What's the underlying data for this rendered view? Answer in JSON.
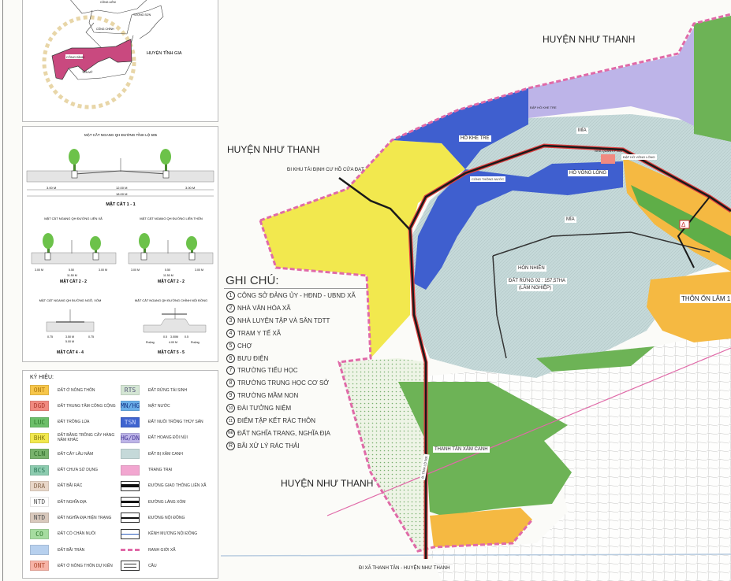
{
  "locator": {
    "communes": [
      "CÔNG LIÊM",
      "TƯỢNG SƠN",
      "CÔNG CHÍNH",
      "CÔNG BÌNH",
      "YÊN MỸ"
    ],
    "district": "HUYỆN TĨNH GIA",
    "highlight_color": "#c9497f"
  },
  "sections": {
    "s1": {
      "title": "MẶT CẮT NGANG QH ĐƯỜNG TỈNH LỘ 505",
      "dims": [
        "3.00 M",
        "12.00 M",
        "3.00 M"
      ],
      "total": "18.00 M",
      "slope": "2.0%",
      "name": "MẶT CẮT 1 - 1"
    },
    "s2a": {
      "title": "MẶT CẮT NGANG QH ĐƯỜNG LIÊN XÃ",
      "dims": [
        "3.00 M",
        "5.50",
        "3.00 M"
      ],
      "total": "11.50 M",
      "name": "MẶT CẮT 2 - 2"
    },
    "s2b": {
      "title": "MẶT CẮT NGANG QH ĐƯỜNG LIÊN THÔN",
      "dims": [
        "3.00 M",
        "5.50",
        "3.00 M"
      ],
      "total": "11.50 M",
      "name": "MẶT CẮT 2 - 2"
    },
    "s4": {
      "title": "MẶT CẮT NGANG QH ĐƯỜNG NGÕ, XÓM",
      "dims": [
        "0.75",
        "3.50 M",
        "0.75"
      ],
      "total": "5.00 M",
      "name": "MẶT CẮT 4 - 4"
    },
    "s5": {
      "title": "MẶT CẮT NGANG QH ĐƯỜNG CHÍNH NỘI ĐỒNG",
      "dims": [
        "0.5",
        "3.00M",
        "0.5"
      ],
      "total": "4.00 M",
      "side": "Ruộng",
      "name": "MẶT CẮT 5 - 5"
    }
  },
  "legend": {
    "title": "KÝ HIỆU:",
    "left": [
      {
        "code": "ONT",
        "label": "ĐẤT Ở NÔNG THÔN",
        "color": "#f7c64a",
        "text": "#b07a10"
      },
      {
        "code": "DGD",
        "label": "ĐẤT TRUNG TÂM CÔNG CỘNG",
        "color": "#f08a80",
        "text": "#b03a30"
      },
      {
        "code": "LUC",
        "label": "ĐẤT TRỒNG LÚA",
        "color": "#6dbf6a",
        "text": "#2f7a2c"
      },
      {
        "code": "BHK",
        "label": "ĐẤT BẰNG TRỒNG CÂY HÀNG NĂM KHÁC",
        "color": "#f2e84e",
        "text": "#8a7e10"
      },
      {
        "code": "CLN",
        "label": "ĐẤT CÂY LÂU NĂM",
        "color": "#79b36c",
        "text": "#2f6a28"
      },
      {
        "code": "BCS",
        "label": "ĐẤT CHƯA SỬ DỤNG",
        "color": "#8ccbaf",
        "text": "#2e7a5a"
      },
      {
        "code": "DRA",
        "label": "ĐẤT BÃI RÁC",
        "color": "#e8d6c8",
        "text": "#8a6a50"
      },
      {
        "code": "NTD",
        "label": "ĐẤT NGHĨA ĐỊA",
        "color": "#ffffff",
        "text": "#555"
      },
      {
        "code": "NTD",
        "label": "ĐẤT NGHĨA ĐỊA HIỆN TRẠNG",
        "color": "#d8c8bc",
        "text": "#555"
      },
      {
        "code": "CO",
        "label": "ĐẤT CỎ CHĂN NUÔI",
        "color": "#a6dca0",
        "text": "#2f7a2c"
      },
      {
        "code": "",
        "label": "ĐẤT BÃI TRÀN",
        "color": "#b7d0ee",
        "text": "#333"
      },
      {
        "code": "ONT",
        "label": "ĐẤT Ở NÔNG THÔN DỰ KIẾN",
        "color": "#f7b3a6",
        "text": "#b04a30"
      }
    ],
    "right": [
      {
        "code": "RTS",
        "label": "ĐẤT RỪNG TÁI SINH",
        "color": "#d4e6d4",
        "text": "#557",
        "kind": "swatch"
      },
      {
        "code": "MN/HG",
        "label": "MẶT NƯỚC",
        "color": "#6aaee8",
        "text": "#1a3a8a",
        "kind": "swatch"
      },
      {
        "code": "TSN",
        "label": "ĐẤT NUÔI TRỒNG THỦY SẢN",
        "color": "#3f64cf",
        "text": "#c8d4ff",
        "kind": "swatch"
      },
      {
        "code": "HG/DN",
        "label": "ĐẤT HOANG ĐỒI NÚI",
        "color": "#bdb4e8",
        "text": "#4a3a9a",
        "kind": "swatch"
      },
      {
        "code": "",
        "label": "ĐẤT BỊ XÂM CANH",
        "color": "#c5d9d9",
        "text": "#333",
        "kind": "swatch"
      },
      {
        "code": "",
        "label": "TRANG TRẠI",
        "color": "#f2a6d0",
        "text": "#333",
        "kind": "swatch"
      },
      {
        "code": "",
        "label": "ĐƯỜNG GIAO THÔNG LIÊN XÃ",
        "color": "#111111",
        "kind": "road-thick"
      },
      {
        "code": "",
        "label": "ĐƯỜNG LÀNG XÓM",
        "color": "#111111",
        "kind": "road-mid"
      },
      {
        "code": "",
        "label": "ĐƯỜNG NỘI ĐỒNG",
        "color": "#111111",
        "kind": "road-thin"
      },
      {
        "code": "",
        "label": "KÊNH MƯƠNG NỘI ĐỒNG",
        "color": "#3060c0",
        "kind": "canal"
      },
      {
        "code": "",
        "label": "RANH GIỚI XÃ",
        "color": "#e06aa8",
        "kind": "boundary"
      },
      {
        "code": "",
        "label": "CẦU",
        "color": "#333333",
        "kind": "bridge"
      }
    ]
  },
  "notes": {
    "title": "GHI CHÚ:",
    "items": [
      {
        "num": "1",
        "label": "CÔNG SỞ ĐẢNG ỦY - HĐND - UBND XÃ"
      },
      {
        "num": "2",
        "label": "NHÀ VĂN HÓA XÃ"
      },
      {
        "num": "3",
        "label": "NHÀ LUYỆN TẬP VÀ SÂN TDTT"
      },
      {
        "num": "4",
        "label": "TRẠM Y TẾ XÃ"
      },
      {
        "num": "5",
        "label": "CHỢ"
      },
      {
        "num": "6",
        "label": "BƯU ĐIỆN"
      },
      {
        "num": "7",
        "label": "TRƯỜNG TIỂU HỌC"
      },
      {
        "num": "8",
        "label": "TRƯỜNG TRUNG HỌC CƠ SỞ"
      },
      {
        "num": "9",
        "label": "TRƯỜNG MẦM NON"
      },
      {
        "num": "10",
        "label": "ĐÀI TƯỞNG NIỆM"
      },
      {
        "num": "11",
        "label": "ĐIỂM TẬP KẾT RÁC THÔN"
      },
      {
        "num": "NĐ",
        "label": "ĐẤT NGHĨA TRANG, NGHĨA ĐỊA"
      },
      {
        "num": "R",
        "label": "BÃI XỬ LÝ RÁC THẢI"
      }
    ]
  },
  "map": {
    "districts": [
      "HUYỆN NHƯ THANH",
      "HUYỆN NHƯ THANH",
      "HUYỆN NHƯ THANH"
    ],
    "labels": {
      "ho_khe_tre": "HỒ KHE TRE",
      "ho_vong_long": "HỒ VÔNG LÔNG",
      "mia1": "MÍA",
      "mia2": "MÍA",
      "hon_nhien": "HÒN NHIÊN",
      "dat_rung": "ĐẤT RỪNG 02 : 157,57HA",
      "lam_nghiep": "(LÂM NGHIỆP)",
      "thon_on_lam": "THÔN ỔN LÂM 1",
      "thanh_tan": "THANH TÂN XÂM CANH",
      "di_khu_tdc": "ĐI KHU TÁI ĐỊNH CƯ HỒ CỬA ĐẠT",
      "di_xa_thanh_tan": "ĐI XÃ THANH TÂN - HUYỆN NHƯ THANH",
      "dap_khe_tre": "ĐẬP HỒ KHE TRE",
      "dap_vong_long": "ĐẬP HỒ VÔNG LÔNG",
      "nha_quan_ly": "NHÀ QUẢN LÝ ĐẬP",
      "cong_thong_nuoc": "CỐNG THÔNG NƯỚC",
      "tinh_lo": "Đ. TỈNH LỘ 505"
    },
    "colors": {
      "boundary": "#e06aa8",
      "water": "#3f5fcf",
      "encroach": "#c5d9d9",
      "yellow": "#f2e84e",
      "orange": "#f5b942",
      "green": "#6db356",
      "lavender": "#bdb4e8",
      "road": "#1a1a1a"
    }
  }
}
